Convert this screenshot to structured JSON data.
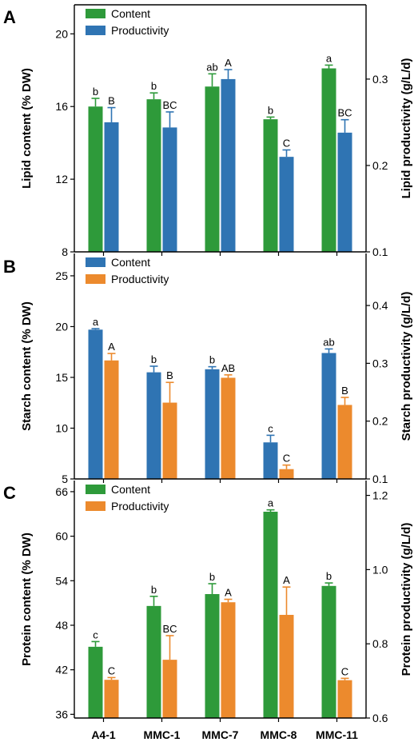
{
  "colors": {
    "green": "#2e9a3a",
    "blue": "#2f74b3",
    "orange": "#ec8a2d",
    "axis": "#000000"
  },
  "categories": [
    "A4-1",
    "MMC-1",
    "MMC-7",
    "MMC-8",
    "MMC-11"
  ],
  "chart_data": [
    {
      "type": "bar",
      "panel_label": "A",
      "ylabel": "Lipid content (% DW)",
      "ylabel_right": "Lipid productivity (g/L/d)",
      "ylim": [
        8,
        21.6
      ],
      "yticks": [
        8,
        12,
        16,
        20
      ],
      "ylim_right": [
        0.1,
        0.386
      ],
      "yticks_right": [
        0.1,
        0.2,
        0.3
      ],
      "categories": [
        "A4-1",
        "MMC-1",
        "MMC-7",
        "MMC-8",
        "MMC-11"
      ],
      "legend_position": "top-left",
      "series": [
        {
          "name": "Content",
          "axis": "left",
          "color": "#2e9a3a",
          "values": [
            16.0,
            16.4,
            17.1,
            15.3,
            18.1
          ],
          "errors": [
            0.45,
            0.35,
            0.7,
            0.12,
            0.18
          ],
          "labels": [
            "b",
            "b",
            "ab",
            "b",
            "a"
          ]
        },
        {
          "name": "Productivity",
          "axis": "right",
          "color": "#2f74b3",
          "values": [
            0.25,
            0.244,
            0.3,
            0.21,
            0.238
          ],
          "errors": [
            0.017,
            0.018,
            0.011,
            0.008,
            0.015
          ],
          "labels": [
            "B",
            "BC",
            "A",
            "C",
            "BC"
          ]
        }
      ]
    },
    {
      "type": "bar",
      "panel_label": "B",
      "ylabel": "Starch content (% DW)",
      "ylabel_right": "Starch productivity (g/L/d)",
      "ylim": [
        5,
        27.2
      ],
      "yticks": [
        5,
        10,
        15,
        20,
        25
      ],
      "ylim_right": [
        0.1,
        0.49
      ],
      "yticks_right": [
        0.1,
        0.2,
        0.3,
        0.4
      ],
      "categories": [
        "A4-1",
        "MMC-1",
        "MMC-7",
        "MMC-8",
        "MMC-11"
      ],
      "legend_position": "top-left",
      "series": [
        {
          "name": "Content",
          "axis": "left",
          "color": "#2f74b3",
          "values": [
            19.7,
            15.5,
            15.8,
            8.6,
            17.4
          ],
          "errors": [
            0.1,
            0.6,
            0.25,
            0.7,
            0.4
          ],
          "labels": [
            "a",
            "b",
            "b",
            "c",
            "ab"
          ]
        },
        {
          "name": "Productivity",
          "axis": "right",
          "color": "#ec8a2d",
          "values": [
            0.305,
            0.232,
            0.275,
            0.117,
            0.228
          ],
          "errors": [
            0.012,
            0.035,
            0.005,
            0.007,
            0.013
          ],
          "labels": [
            "A",
            "B",
            "AB",
            "C",
            "B"
          ]
        }
      ]
    },
    {
      "type": "bar",
      "panel_label": "C",
      "ylabel": "Protein content (% DW)",
      "ylabel_right": "Protein productivity (g/L/d)",
      "ylim": [
        35.5,
        67.5
      ],
      "yticks": [
        36,
        42,
        48,
        54,
        60,
        66
      ],
      "ylim_right": [
        0.6,
        1.24
      ],
      "yticks_right": [
        0.6,
        0.8,
        1.0,
        1.2
      ],
      "categories": [
        "A4-1",
        "MMC-1",
        "MMC-7",
        "MMC-8",
        "MMC-11"
      ],
      "legend_position": "top-left",
      "series": [
        {
          "name": "Content",
          "axis": "left",
          "color": "#2e9a3a",
          "values": [
            45.1,
            50.6,
            52.2,
            63.3,
            53.3
          ],
          "errors": [
            0.7,
            1.3,
            1.4,
            0.25,
            0.4
          ],
          "labels": [
            "c",
            "b",
            "b",
            "a",
            "b"
          ]
        },
        {
          "name": "Productivity",
          "axis": "right",
          "color": "#ec8a2d",
          "values": [
            0.703,
            0.757,
            0.912,
            0.878,
            0.702
          ],
          "errors": [
            0.006,
            0.065,
            0.008,
            0.075,
            0.005
          ],
          "labels": [
            "C",
            "BC",
            "A",
            "A",
            "C"
          ]
        }
      ]
    }
  ]
}
